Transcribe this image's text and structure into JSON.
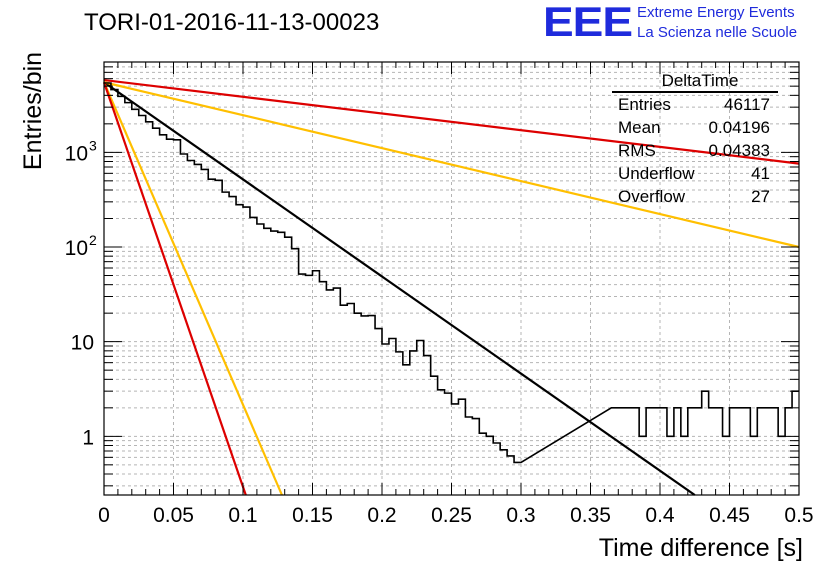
{
  "title": "TORI-01-2016-11-13-00023",
  "logo": {
    "mark": "EEE",
    "line1": "Extreme Energy Events",
    "line2": "La Scienza nelle Scuole",
    "color": "#1f2bdc"
  },
  "stats": {
    "name": "DeltaTime",
    "rows": [
      {
        "label": "Entries",
        "value": "46117"
      },
      {
        "label": "Mean",
        "value": "0.04196"
      },
      {
        "label": "RMS",
        "value": "0.04383"
      },
      {
        "label": "Underflow",
        "value": "41"
      },
      {
        "label": "Overflow",
        "value": "27"
      }
    ]
  },
  "chart_data": {
    "type": "line",
    "title": "TORI-01-2016-11-13-00023",
    "xlabel": "Time difference [s]",
    "ylabel": "Entries/bin",
    "x_scale": "linear",
    "y_scale": "log",
    "xlim": [
      0,
      0.5
    ],
    "ylim": [
      0.24,
      9000
    ],
    "grid": true,
    "legend": "stats box top-right",
    "x_ticks": [
      {
        "value": 0,
        "label": "0"
      },
      {
        "value": 0.05,
        "label": "0.05"
      },
      {
        "value": 0.1,
        "label": "0.1"
      },
      {
        "value": 0.15,
        "label": "0.15"
      },
      {
        "value": 0.2,
        "label": "0.2"
      },
      {
        "value": 0.25,
        "label": "0.25"
      },
      {
        "value": 0.3,
        "label": "0.3"
      },
      {
        "value": 0.35,
        "label": "0.35"
      },
      {
        "value": 0.4,
        "label": "0.4"
      },
      {
        "value": 0.45,
        "label": "0.45"
      },
      {
        "value": 0.5,
        "label": "0.5"
      }
    ],
    "y_ticks": [
      {
        "value": 1,
        "label": "1",
        "sup": ""
      },
      {
        "value": 10,
        "label": "10",
        "sup": ""
      },
      {
        "value": 100,
        "label": "10",
        "sup": "2"
      },
      {
        "value": 1000,
        "label": "10",
        "sup": "3"
      }
    ],
    "histogram": {
      "color": "#000000",
      "bin_width": 0.005,
      "counts": [
        5400,
        4600,
        3900,
        3350,
        2850,
        2450,
        2100,
        1800,
        1530,
        1310,
        1130,
        960,
        820,
        710,
        600,
        520,
        440,
        380,
        325,
        280,
        240,
        205,
        175,
        150,
        128,
        110,
        94,
        80,
        69,
        59,
        51,
        43,
        37,
        32,
        27,
        23,
        20,
        17,
        14.5,
        12.5,
        10.5,
        9,
        7.8,
        6.7,
        5.7,
        4.9,
        4.2,
        3.6,
        3.1,
        2.6,
        2.2,
        1.9,
        1.6,
        1.4,
        1.2,
        1.0,
        0.85,
        0.72,
        0.62,
        0.53
      ],
      "noise": [
        1.0,
        1.0,
        1.0,
        1.0,
        1.0,
        1.0,
        1.0,
        1.0,
        1.0,
        1.05,
        1.2,
        1.0,
        1.0,
        1.05,
        1.1,
        1.0,
        1.15,
        1.0,
        1.05,
        1.0,
        1.1,
        1.0,
        1.0,
        1.05,
        1.15,
        1.3,
        1.35,
        1.2,
        0.75,
        0.85,
        1.1,
        1.0,
        0.95,
        1.15,
        0.9,
        1.1,
        1.0,
        1.1,
        1.3,
        1.1,
        0.9,
        1.2,
        1.0,
        0.85,
        1.4,
        2.1,
        1.7,
        1.2,
        1.0,
        1.1,
        1.0,
        1.3,
        1.0,
        1.1,
        0.9,
        1.0,
        1.0,
        1.0,
        1.0,
        1.0
      ]
    },
    "tail_bins": [
      {
        "x": 0.365,
        "count": 2
      },
      {
        "x": 0.37,
        "count": 2
      },
      {
        "x": 0.375,
        "count": 2
      },
      {
        "x": 0.38,
        "count": 2
      },
      {
        "x": 0.385,
        "count": 1
      },
      {
        "x": 0.39,
        "count": 2
      },
      {
        "x": 0.395,
        "count": 2
      },
      {
        "x": 0.4,
        "count": 2
      },
      {
        "x": 0.405,
        "count": 1
      },
      {
        "x": 0.41,
        "count": 2
      },
      {
        "x": 0.415,
        "count": 1
      },
      {
        "x": 0.42,
        "count": 2
      },
      {
        "x": 0.425,
        "count": 2
      },
      {
        "x": 0.43,
        "count": 3
      },
      {
        "x": 0.435,
        "count": 2
      },
      {
        "x": 0.44,
        "count": 2
      },
      {
        "x": 0.445,
        "count": 1
      },
      {
        "x": 0.45,
        "count": 2
      },
      {
        "x": 0.455,
        "count": 2
      },
      {
        "x": 0.46,
        "count": 2
      },
      {
        "x": 0.465,
        "count": 1
      },
      {
        "x": 0.47,
        "count": 2
      },
      {
        "x": 0.475,
        "count": 2
      },
      {
        "x": 0.48,
        "count": 2
      },
      {
        "x": 0.485,
        "count": 1
      },
      {
        "x": 0.49,
        "count": 2
      },
      {
        "x": 0.495,
        "count": 3
      }
    ],
    "fits": [
      {
        "color": "#000000",
        "y0": 5500,
        "x_end": 0.425,
        "y_end": 0.24
      },
      {
        "color": "#dd0000",
        "y0": 5800,
        "x_end": 0.5,
        "y_end": 760
      },
      {
        "color": "#ffbf00",
        "y0": 5500,
        "x_end": 0.5,
        "y_end": 100
      },
      {
        "color": "#ffbf00",
        "y0": 5500,
        "x_end": 0.128,
        "y_end": 0.24
      },
      {
        "color": "#dd0000",
        "y0": 5500,
        "x_end": 0.102,
        "y_end": 0.24
      }
    ]
  }
}
